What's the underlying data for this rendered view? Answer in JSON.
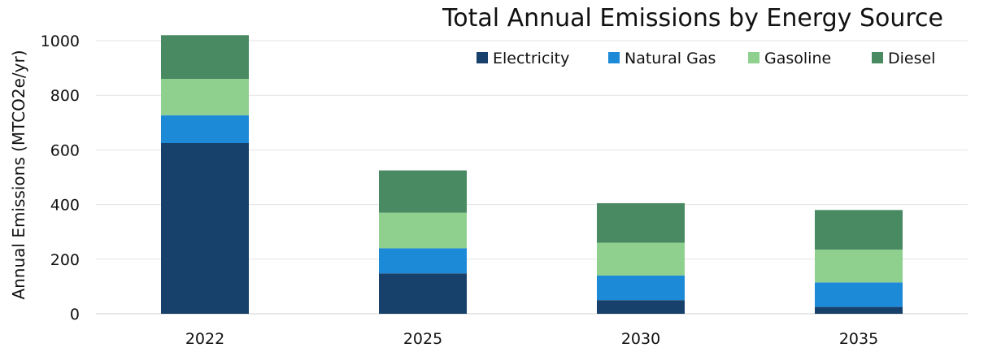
{
  "chart_data": {
    "type": "bar",
    "stacked": true,
    "title": "Total Annual Emissions by Energy Source",
    "xlabel": "",
    "ylabel": "Annual Emissions (MTCO2e/yr)",
    "ylim": [
      0,
      1000
    ],
    "yticks": [
      0,
      200,
      400,
      600,
      800,
      1000
    ],
    "grid": true,
    "legend_position": "top-right",
    "categories": [
      "2022",
      "2025",
      "2030",
      "2035"
    ],
    "series": [
      {
        "name": "Electricity",
        "color": "#17406a",
        "values": [
          625,
          148,
          50,
          25
        ]
      },
      {
        "name": "Natural Gas",
        "color": "#1d8ad8",
        "values": [
          102,
          92,
          90,
          90
        ]
      },
      {
        "name": "Gasoline",
        "color": "#8fd08f",
        "values": [
          133,
          130,
          120,
          120
        ]
      },
      {
        "name": "Diesel",
        "color": "#4a8a62",
        "values": [
          160,
          155,
          145,
          145
        ]
      }
    ]
  }
}
